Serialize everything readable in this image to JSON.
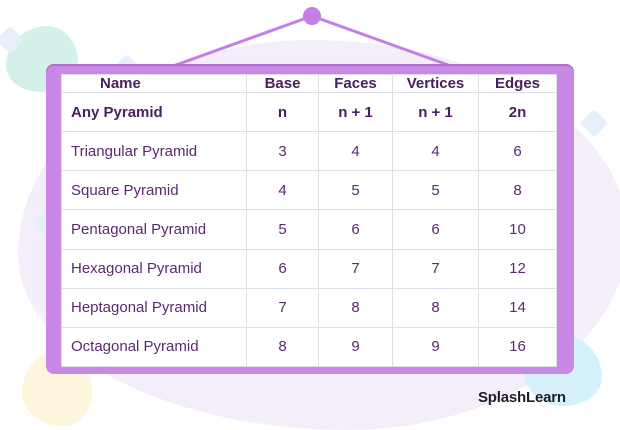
{
  "table": {
    "headers": [
      "Name",
      "Base",
      "Faces",
      "Vertices",
      "Edges"
    ],
    "rows": [
      [
        "Any Pyramid",
        "n",
        "n + 1",
        "n + 1",
        "2n"
      ],
      [
        "Triangular Pyramid",
        "3",
        "4",
        "4",
        "6"
      ],
      [
        "Square Pyramid",
        "4",
        "5",
        "5",
        "8"
      ],
      [
        "Pentagonal Pyramid",
        "5",
        "6",
        "6",
        "10"
      ],
      [
        "Hexagonal Pyramid",
        "6",
        "7",
        "7",
        "12"
      ],
      [
        "Heptagonal Pyramid",
        "7",
        "8",
        "8",
        "14"
      ],
      [
        "Octagonal Pyramid",
        "8",
        "9",
        "9",
        "16"
      ]
    ]
  },
  "logo": {
    "brand": "SplashLearn"
  },
  "colors": {
    "frame": "#c987e6",
    "text": "#5b2a6e",
    "grid": "#dcdfe6",
    "pin": "#c57ee6"
  }
}
